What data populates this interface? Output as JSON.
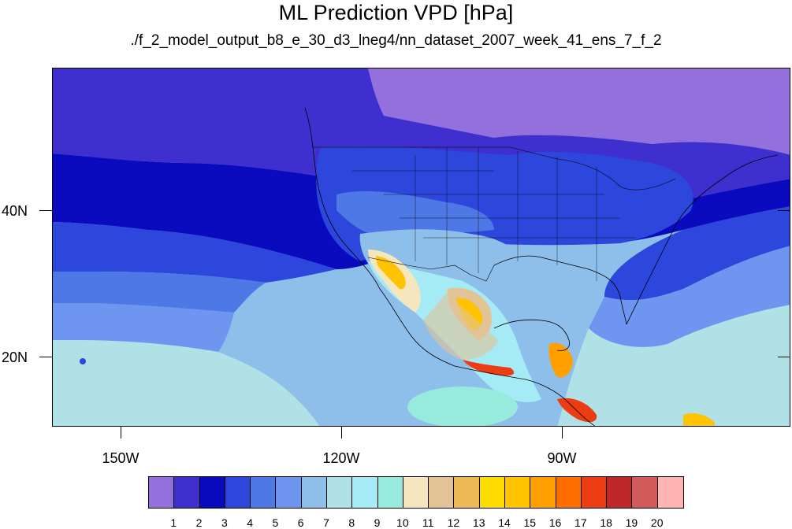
{
  "title": "ML Prediction VPD [hPa]",
  "subtitle": "./f_2_model_output_b8_e_30_d3_lneg4/nn_dataset_2007_week_41_ens_7_f_2",
  "map": {
    "lat_labels": [
      "40N",
      "20N"
    ],
    "lon_labels": [
      "150W",
      "120W",
      "90W"
    ]
  },
  "colorbar": {
    "colors": [
      "#9370DB",
      "#3F2FCF",
      "#0A0ABE",
      "#2D46DC",
      "#4E78E6",
      "#6E96F0",
      "#8EBEEA",
      "#AFE1E6",
      "#A5EBF5",
      "#96EBDC",
      "#F5E6BE",
      "#E1C396",
      "#EBB955",
      "#FFDC00",
      "#FFC300",
      "#FFA000",
      "#FF6E00",
      "#EB3C14",
      "#BE2828",
      "#D25A5A",
      "#FFB4B4"
    ],
    "labels": [
      "1",
      "2",
      "3",
      "4",
      "5",
      "6",
      "7",
      "8",
      "9",
      "10",
      "11",
      "12",
      "13",
      "14",
      "15",
      "16",
      "17",
      "18",
      "19",
      "20"
    ]
  }
}
